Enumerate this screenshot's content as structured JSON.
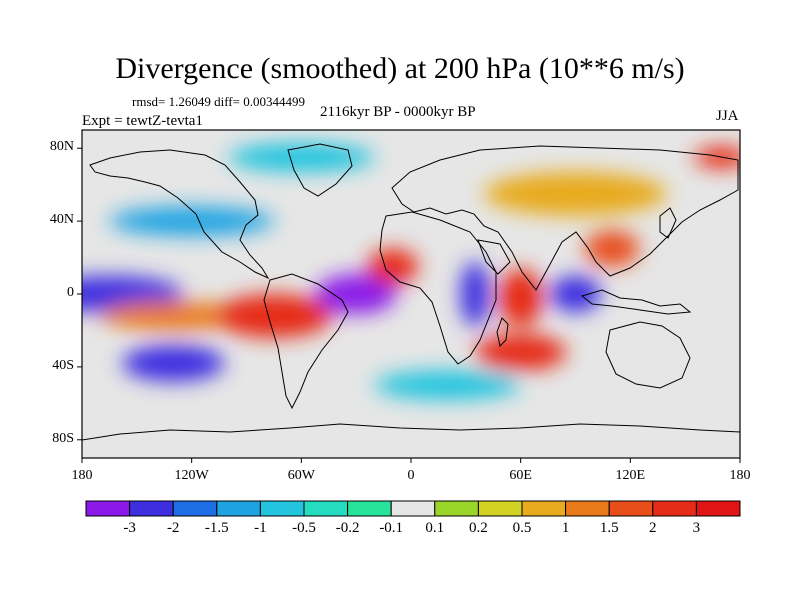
{
  "title": "Divergence (smoothed) at 200 hPa (10**6 m/s)",
  "stats": "rmsd= 1.26049 diff= 0.00344499",
  "experiment": "Expt = tewtZ-tevta1",
  "period": "2116kyr BP - 0000kyr BP",
  "season": "JJA",
  "axes": {
    "lat_ticks": [
      "80N",
      "40N",
      "0",
      "40S",
      "80S"
    ],
    "lon_ticks": [
      "180",
      "120W",
      "60W",
      "0",
      "60E",
      "120E",
      "180"
    ]
  },
  "colorbar": {
    "labels": [
      "-3",
      "-2",
      "-1.5",
      "-1",
      "-0.5",
      "-0.2",
      "-0.1",
      "0.1",
      "0.2",
      "0.5",
      "1",
      "1.5",
      "2",
      "3"
    ],
    "colors": [
      "#8b1ae8",
      "#3d2fe0",
      "#1e6fe6",
      "#1ea3e2",
      "#22c4de",
      "#26dcc0",
      "#28e49a",
      "#e6e6e6",
      "#9ad62a",
      "#d2d224",
      "#e8aa1e",
      "#ea7a1c",
      "#e84e1a",
      "#e62c18",
      "#e01414"
    ]
  },
  "map_data": {
    "lon_range": [
      -180,
      180
    ],
    "lat_range": [
      -90,
      90
    ],
    "field_blobs": [
      {
        "lon": -165,
        "lat": 0,
        "value": -2.5,
        "rlon": 40,
        "rlat": 10
      },
      {
        "lon": -130,
        "lat": -38,
        "value": -2.2,
        "rlon": 28,
        "rlat": 10
      },
      {
        "lon": -130,
        "lat": -12,
        "value": 1.2,
        "rlon": 40,
        "rlat": 8
      },
      {
        "lon": -75,
        "lat": -12,
        "value": 2.2,
        "rlon": 32,
        "rlat": 12
      },
      {
        "lon": -30,
        "lat": 0,
        "value": -3.0,
        "rlon": 22,
        "rlat": 11
      },
      {
        "lon": -10,
        "lat": 15,
        "value": 3.0,
        "rlon": 14,
        "rlat": 10
      },
      {
        "lon": 35,
        "lat": 0,
        "value": -2.3,
        "rlon": 8,
        "rlat": 18
      },
      {
        "lon": 60,
        "lat": -2,
        "value": 3.0,
        "rlon": 12,
        "rlat": 16
      },
      {
        "lon": 90,
        "lat": 0,
        "value": -2.8,
        "rlon": 14,
        "rlat": 10
      },
      {
        "lon": 110,
        "lat": 25,
        "value": 2.0,
        "rlon": 15,
        "rlat": 10
      },
      {
        "lon": 60,
        "lat": -32,
        "value": 2.2,
        "rlon": 25,
        "rlat": 10
      },
      {
        "lon": 20,
        "lat": -50,
        "value": -0.8,
        "rlon": 40,
        "rlat": 8
      },
      {
        "lon": -120,
        "lat": 40,
        "value": -1.2,
        "rlon": 45,
        "rlat": 8
      },
      {
        "lon": 90,
        "lat": 55,
        "value": 0.8,
        "rlon": 50,
        "rlat": 12
      },
      {
        "lon": -60,
        "lat": 75,
        "value": -0.6,
        "rlon": 40,
        "rlat": 8
      },
      {
        "lon": 170,
        "lat": 75,
        "value": 3.0,
        "rlon": 15,
        "rlat": 6
      }
    ]
  }
}
